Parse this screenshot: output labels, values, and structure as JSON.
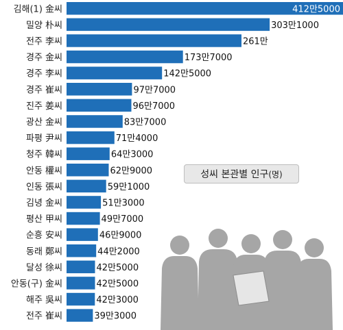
{
  "chart_data": {
    "type": "bar",
    "orientation": "horizontal",
    "title": "성씨 본관별 인구",
    "title_unit": "(명)",
    "categories": [
      "김해(1) 金씨",
      "밀양 朴씨",
      "전주 李씨",
      "경주 金씨",
      "경주 李씨",
      "경주 崔씨",
      "진주 姜씨",
      "광산 金씨",
      "파평 尹씨",
      "청주 韓씨",
      "안동 權씨",
      "인동 張씨",
      "김녕 金씨",
      "평산 甲씨",
      "순흥 安씨",
      "동래 鄭씨",
      "달성 徐씨",
      "안동(구) 金씨",
      "해주 吳씨",
      "전주 崔씨"
    ],
    "values": [
      4125000,
      3031000,
      2610000,
      1737000,
      1425000,
      977000,
      967000,
      837000,
      714000,
      643000,
      629000,
      591000,
      513000,
      497000,
      469000,
      442000,
      425000,
      425000,
      423000,
      393000
    ],
    "value_labels": [
      "412만5000",
      "303만1000",
      "261만",
      "173만7000",
      "142만5000",
      "97만7000",
      "96만7000",
      "83만7000",
      "71만4000",
      "64만3000",
      "62만9000",
      "59만1000",
      "51만3000",
      "49만7000",
      "46만9000",
      "44만2000",
      "42만5000",
      "42만5000",
      "42만3000",
      "39만3000"
    ],
    "bar_color": "#1f6fb8",
    "silhouette_color": "#a6a6a6",
    "legend_bg": "#e8e8e8",
    "grid": false
  }
}
